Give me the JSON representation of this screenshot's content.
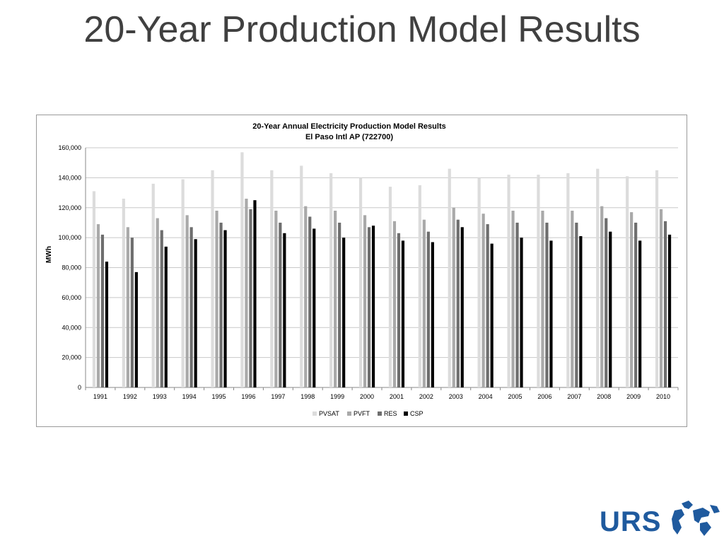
{
  "slide": {
    "title": "20-Year Production Model Results"
  },
  "logo": {
    "text": "URS",
    "color": "#1f5a9e"
  },
  "chart_data": {
    "type": "bar",
    "title": "20-Year Annual Electricity Production Model Results",
    "subtitle": "El Paso Intl AP (722700)",
    "xlabel": "",
    "ylabel": "MWh",
    "ylim": [
      0,
      160000
    ],
    "yticks": [
      0,
      20000,
      40000,
      60000,
      80000,
      100000,
      120000,
      140000,
      160000
    ],
    "ytick_labels": [
      "0",
      "20,000",
      "40,000",
      "60,000",
      "80,000",
      "100,000",
      "120,000",
      "140,000",
      "160,000"
    ],
    "grid": true,
    "legend_position": "bottom",
    "categories": [
      "1991",
      "1992",
      "1993",
      "1994",
      "1995",
      "1996",
      "1997",
      "1998",
      "1999",
      "2000",
      "2001",
      "2002",
      "2003",
      "2004",
      "2005",
      "2006",
      "2007",
      "2008",
      "2009",
      "2010"
    ],
    "series": [
      {
        "name": "PVSAT",
        "color": "#dcdcdc",
        "values": [
          131000,
          126000,
          136000,
          139000,
          145000,
          157000,
          145000,
          148000,
          143000,
          140000,
          134000,
          135000,
          146000,
          140000,
          142000,
          142000,
          143000,
          146000,
          141000,
          145000
        ]
      },
      {
        "name": "PVFT",
        "color": "#a9a9a9",
        "values": [
          109000,
          107000,
          113000,
          115000,
          118000,
          126000,
          118000,
          121000,
          118000,
          115000,
          111000,
          112000,
          120000,
          116000,
          118000,
          118000,
          118000,
          121000,
          117000,
          119000
        ]
      },
      {
        "name": "RES",
        "color": "#6e6e6e",
        "values": [
          102000,
          100000,
          105000,
          107000,
          110000,
          119000,
          110000,
          114000,
          110000,
          107000,
          103000,
          104000,
          112000,
          109000,
          110000,
          110000,
          110000,
          113000,
          110000,
          111000
        ]
      },
      {
        "name": "CSP",
        "color": "#000000",
        "values": [
          84000,
          77000,
          94000,
          99000,
          105000,
          125000,
          103000,
          106000,
          100000,
          108000,
          98000,
          97000,
          107000,
          96000,
          100000,
          98000,
          101000,
          104000,
          98000,
          102000
        ]
      }
    ]
  }
}
